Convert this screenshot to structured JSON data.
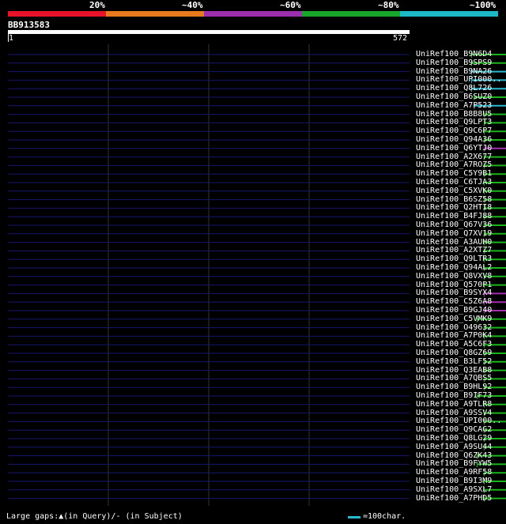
{
  "legend": [
    {
      "label": "20%",
      "color": "#e8132a"
    },
    {
      "label": "~40%",
      "color": "#e87a1e"
    },
    {
      "label": "~60%",
      "color": "#9b2fae"
    },
    {
      "label": "~80%",
      "color": "#18a52a"
    },
    {
      "label": "~100%",
      "color": "#1cb8c8"
    }
  ],
  "query": {
    "name": "BB913583",
    "start": "1",
    "end": "572"
  },
  "colors": {
    "green": "#1cb41c",
    "cyan": "#28b8d0",
    "purple": "#a32fae",
    "background": "#000000",
    "grid": "#333333",
    "subject_line": "#16166e"
  },
  "hits": [
    {
      "name": "UniRef100_B9N6D4",
      "color": "green",
      "start": 660,
      "end": 1222,
      "gap_mark": 1205,
      "trailing_arrow": true
    },
    {
      "name": "UniRef100_B9SPS9",
      "color": "green",
      "start": 660,
      "end": 1222,
      "gap_mark": 1205,
      "trailing_arrow": true
    },
    {
      "name": "UniRef100_B9NA26",
      "color": "cyan",
      "start": 660,
      "end": 1082,
      "gap_mark": null,
      "trailing_arrow": true
    },
    {
      "name": "UniRef100_UPI000..",
      "color": "cyan",
      "start": 660,
      "end": 1110,
      "gap_mark": null,
      "trailing_arrow": true
    },
    {
      "name": "UniRef100_Q8L726",
      "color": "cyan",
      "start": 660,
      "end": 1114,
      "gap_mark": null,
      "trailing_arrow": true
    },
    {
      "name": "UniRef100_B6SUZ0",
      "color": "green",
      "start": 664,
      "end": 1220,
      "gap_mark": null,
      "trailing_arrow": true
    },
    {
      "name": "UniRef100_A7P523",
      "color": "cyan",
      "start": 664,
      "end": 950,
      "gap_mark": null,
      "trailing_arrow": true
    },
    {
      "name": "UniRef100_B8B8U5",
      "color": "green",
      "start": 678,
      "end": 1120,
      "gap_mark": 1108,
      "trailing_arrow": true
    },
    {
      "name": "UniRef100_Q9LPT3",
      "color": "green",
      "start": 678,
      "end": 1150,
      "gap_mark": null,
      "trailing_arrow": true
    },
    {
      "name": "UniRef100_Q9C6P7",
      "color": "green",
      "start": 678,
      "end": 1150,
      "gap_mark": null,
      "trailing_arrow": true
    },
    {
      "name": "UniRef100_Q94A36",
      "color": "green",
      "start": 678,
      "end": 1150,
      "gap_mark": null,
      "trailing_arrow": true
    },
    {
      "name": "UniRef100_Q6YTJ0",
      "color": "purple",
      "start": 678,
      "end": 1212,
      "gap_mark": null,
      "trailing_arrow": true
    },
    {
      "name": "UniRef100_A2X677",
      "color": "green",
      "start": 678,
      "end": 1162,
      "gap_mark": null,
      "trailing_arrow": true
    },
    {
      "name": "UniRef100_A7ROZ5",
      "color": "green",
      "start": 678,
      "end": 1110,
      "gap_mark": 1092,
      "trailing_arrow": true
    },
    {
      "name": "UniRef100_C5Y9B1",
      "color": "green",
      "start": 678,
      "end": 1152,
      "gap_mark": 1140,
      "trailing_arrow": true
    },
    {
      "name": "UniRef100_C6TJA3",
      "color": "green",
      "start": 678,
      "end": 1140,
      "gap_mark": 1130,
      "trailing_arrow": true
    },
    {
      "name": "UniRef100_C5XVK0",
      "color": "green",
      "start": 678,
      "end": 988,
      "gap_mark": null,
      "trailing_arrow": true
    },
    {
      "name": "UniRef100_B6SZ58",
      "color": "green",
      "start": 678,
      "end": 988,
      "gap_mark": null,
      "trailing_arrow": true
    },
    {
      "name": "UniRef100_Q2HTI8",
      "color": "green",
      "start": 678,
      "end": 1116,
      "gap_mark": 1106,
      "trailing_arrow": true
    },
    {
      "name": "UniRef100_B4FJ88",
      "color": "green",
      "start": 678,
      "end": 1150,
      "gap_mark": 1138,
      "trailing_arrow": true
    },
    {
      "name": "UniRef100_Q67V36",
      "color": "green",
      "start": 678,
      "end": 1116,
      "gap_mark": null,
      "trailing_arrow": true
    },
    {
      "name": "UniRef100_Q7XV19",
      "color": "green",
      "start": 678,
      "end": 1116,
      "gap_mark": 1086,
      "trailing_arrow": true
    },
    {
      "name": "UniRef100_A3AUH0",
      "color": "green",
      "start": 678,
      "end": 1116,
      "gap_mark": 1086,
      "trailing_arrow": true
    },
    {
      "name": "UniRef100_A2XTZ7",
      "color": "green",
      "start": 678,
      "end": 1116,
      "gap_mark": 1086,
      "trailing_arrow": true
    },
    {
      "name": "UniRef100_Q9LTR3",
      "color": "green",
      "start": 678,
      "end": 1150,
      "gap_mark": null,
      "trailing_arrow": true
    },
    {
      "name": "UniRef100_Q94AL2",
      "color": "green",
      "start": 678,
      "end": 1094,
      "gap_mark": null,
      "trailing_arrow": true
    },
    {
      "name": "UniRef100_Q8VXV8",
      "color": "green",
      "start": 678,
      "end": 1150,
      "gap_mark": null,
      "trailing_arrow": true
    },
    {
      "name": "UniRef100_Q570P1",
      "color": "green",
      "start": 678,
      "end": 1150,
      "gap_mark": null,
      "trailing_arrow": true
    },
    {
      "name": "UniRef100_B9SYX4",
      "color": "purple",
      "start": 678,
      "end": 1166,
      "gap_mark": 1150,
      "trailing_arrow": true
    },
    {
      "name": "UniRef100_C5Z6A8",
      "color": "purple",
      "start": 678,
      "end": 1208,
      "gap_mark": null,
      "trailing_arrow": true
    },
    {
      "name": "UniRef100_B9GJ40",
      "color": "purple",
      "start": 678,
      "end": 1122,
      "gap_mark": null,
      "trailing_arrow": true
    },
    {
      "name": "UniRef100_C5VMK9",
      "color": "green",
      "start": 668,
      "end": 1158,
      "gap_mark": 1134,
      "trailing_arrow": true
    },
    {
      "name": "UniRef100_O49632",
      "color": "green",
      "start": 678,
      "end": 1098,
      "gap_mark": null,
      "trailing_arrow": true
    },
    {
      "name": "UniRef100_A7P0K4",
      "color": "green",
      "start": 678,
      "end": 1110,
      "gap_mark": 1078,
      "trailing_arrow": true
    },
    {
      "name": "UniRef100_A5C6F3",
      "color": "green",
      "start": 678,
      "end": 1110,
      "gap_mark": 1078,
      "trailing_arrow": true
    },
    {
      "name": "UniRef100_Q8GZ69",
      "color": "green",
      "start": 678,
      "end": 1110,
      "gap_mark": null,
      "trailing_arrow": true
    },
    {
      "name": "UniRef100_B3LF52",
      "color": "green",
      "start": 678,
      "end": 1110,
      "gap_mark": null,
      "trailing_arrow": true
    },
    {
      "name": "UniRef100_Q3EAB8",
      "color": "green",
      "start": 678,
      "end": 1110,
      "gap_mark": null,
      "trailing_arrow": true
    },
    {
      "name": "UniRef100_A7QBS5",
      "color": "green",
      "start": 678,
      "end": 1142,
      "gap_mark": 1098,
      "trailing_arrow": true
    },
    {
      "name": "UniRef100_B9HL92",
      "color": "green",
      "start": 678,
      "end": 998,
      "gap_mark": null,
      "trailing_arrow": true
    },
    {
      "name": "UniRef100_B9IF73",
      "color": "green",
      "start": 668,
      "end": 1158,
      "gap_mark": null,
      "trailing_arrow": true
    },
    {
      "name": "UniRef100_A9TLR8",
      "color": "green",
      "start": 678,
      "end": 998,
      "gap_mark": null,
      "trailing_arrow": true
    },
    {
      "name": "UniRef100_A9SSV4",
      "color": "green",
      "start": 678,
      "end": 988,
      "gap_mark": null,
      "trailing_arrow": true
    },
    {
      "name": "UniRef100_UPI000..",
      "color": "green",
      "start": 678,
      "end": 1156,
      "gap_mark": 1120,
      "trailing_arrow": true
    },
    {
      "name": "UniRef100_Q9CAG2",
      "color": "green",
      "start": 678,
      "end": 1156,
      "gap_mark": 1120,
      "trailing_arrow": true
    },
    {
      "name": "UniRef100_Q8LG29",
      "color": "green",
      "start": 678,
      "end": 1156,
      "gap_mark": 1120,
      "trailing_arrow": true
    },
    {
      "name": "UniRef100_A9SU44",
      "color": "green",
      "start": 678,
      "end": 998,
      "gap_mark": null,
      "trailing_arrow": true
    },
    {
      "name": "UniRef100_Q6ZK43",
      "color": "green",
      "start": 668,
      "end": 1150,
      "gap_mark": null,
      "trailing_arrow": true
    },
    {
      "name": "UniRef100_B9FYW5",
      "color": "green",
      "start": 668,
      "end": 1150,
      "gap_mark": null,
      "trailing_arrow": true
    },
    {
      "name": "UniRef100_A9RF58",
      "color": "green",
      "start": 678,
      "end": 1116,
      "gap_mark": 1092,
      "trailing_arrow": true
    },
    {
      "name": "UniRef100_B9I3M9",
      "color": "green",
      "start": 678,
      "end": 1000,
      "gap_mark": null,
      "trailing_arrow": true
    },
    {
      "name": "UniRef100_A9SXL7",
      "color": "green",
      "start": 678,
      "end": 1116,
      "gap_mark": 1110,
      "trailing_arrow": true
    },
    {
      "name": "UniRef100_A7PHD5",
      "color": "green",
      "start": 678,
      "end": 1164,
      "gap_mark": 1110,
      "trailing_arrow": true
    }
  ],
  "footer": {
    "gaps_text": "Large gaps:▲(in Query)/- (in Subject)",
    "key_text": "=100char."
  }
}
